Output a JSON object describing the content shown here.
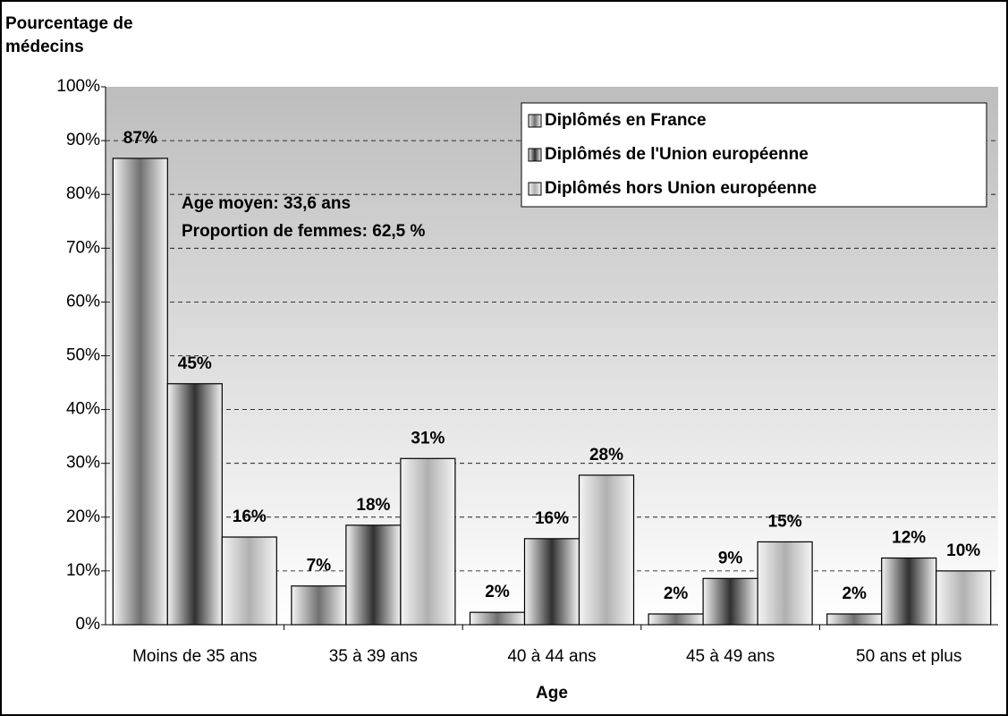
{
  "chart_data": {
    "type": "bar",
    "y_label": "Pourcentage de médecins",
    "x_label": "Age",
    "categories": [
      "Moins de 35 ans",
      "35 à 39 ans",
      "40 à 44 ans",
      "45 à 49 ans",
      "50 ans et plus"
    ],
    "series": [
      {
        "name": "Diplômés en France",
        "color": "#707070",
        "values": [
          86.7,
          7.2,
          2.3,
          2.0,
          2.0
        ],
        "value_labels": [
          "87%",
          "7%",
          "2%",
          "2%",
          "2%"
        ]
      },
      {
        "name": "Diplômés de l'Union européenne",
        "color": "#303030",
        "values": [
          44.8,
          18.5,
          16.0,
          8.6,
          12.4
        ],
        "value_labels": [
          "45%",
          "18%",
          "16%",
          "9%",
          "12%"
        ]
      },
      {
        "name": "Diplômés hors Union européenne",
        "color": "#b0b0b0",
        "values": [
          16.3,
          30.9,
          27.8,
          15.4,
          10.0
        ],
        "value_labels": [
          "16%",
          "31%",
          "28%",
          "15%",
          "10%"
        ]
      }
    ],
    "annotations": [
      "Age moyen: 33,6 ans",
      "Proportion de femmes: 62,5 %"
    ],
    "ylim": [
      0,
      100
    ],
    "yticks": [
      {
        "value": 0,
        "label": "0%"
      },
      {
        "value": 10,
        "label": "10%"
      },
      {
        "value": 20,
        "label": "20%"
      },
      {
        "value": 30,
        "label": "30%"
      },
      {
        "value": 40,
        "label": "40%"
      },
      {
        "value": 50,
        "label": "50%"
      },
      {
        "value": 60,
        "label": "60%"
      },
      {
        "value": 70,
        "label": "70%"
      },
      {
        "value": 80,
        "label": "80%"
      },
      {
        "value": 90,
        "label": "90%"
      },
      {
        "value": 100,
        "label": "100%"
      }
    ],
    "grid": true,
    "legend": "top-right"
  }
}
